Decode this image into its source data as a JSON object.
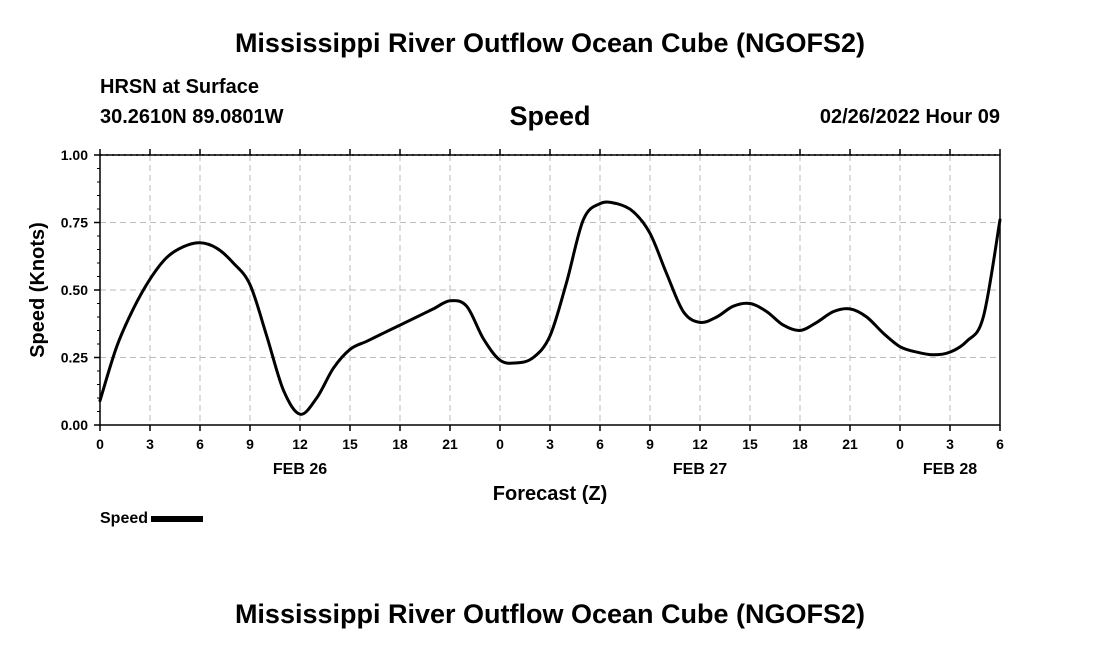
{
  "header": {
    "title": "Mississippi River Outflow Ocean Cube (NGOFS2)",
    "station": "HRSN at Surface",
    "coords": "30.2610N  89.0801W",
    "chart_title": "Speed",
    "timestamp": "02/26/2022 Hour 09"
  },
  "footer": {
    "title": "Mississippi River Outflow Ocean Cube (NGOFS2)"
  },
  "legend": {
    "label": "Speed"
  },
  "chart_data": {
    "type": "line",
    "title": "Speed",
    "xlabel": "Forecast (Z)",
    "ylabel": "Speed (Knots)",
    "ylim": [
      0,
      1
    ],
    "xlim": [
      0,
      54
    ],
    "grid": true,
    "legend_position": "bottom-left",
    "yticks": [
      "0.00",
      "0.25",
      "0.50",
      "0.75",
      "1.00"
    ],
    "xticks": [
      "0",
      "3",
      "6",
      "9",
      "12",
      "15",
      "18",
      "21",
      "0",
      "3",
      "6",
      "9",
      "12",
      "15",
      "18",
      "21",
      "0",
      "3",
      "6"
    ],
    "date_labels": [
      {
        "label": "FEB 26",
        "at": 12
      },
      {
        "label": "FEB 27",
        "at": 36
      },
      {
        "label": "FEB 28",
        "at": 51
      }
    ],
    "series": [
      {
        "name": "Speed",
        "color": "#000000",
        "x": [
          0,
          1,
          2,
          3,
          4,
          5,
          6,
          7,
          8,
          9,
          10,
          11,
          12,
          13,
          14,
          15,
          16,
          17,
          18,
          19,
          20,
          21,
          22,
          23,
          24,
          25,
          26,
          27,
          28,
          29,
          30,
          31,
          32,
          33,
          34,
          35,
          36,
          37,
          38,
          39,
          40,
          41,
          42,
          43,
          44,
          45,
          46,
          47,
          48,
          49,
          50,
          51,
          52,
          53,
          54
        ],
        "values": [
          0.09,
          0.29,
          0.43,
          0.54,
          0.62,
          0.66,
          0.675,
          0.655,
          0.6,
          0.52,
          0.33,
          0.13,
          0.04,
          0.1,
          0.21,
          0.28,
          0.31,
          0.34,
          0.37,
          0.4,
          0.43,
          0.46,
          0.44,
          0.32,
          0.24,
          0.23,
          0.25,
          0.33,
          0.53,
          0.76,
          0.82,
          0.82,
          0.79,
          0.71,
          0.56,
          0.42,
          0.38,
          0.4,
          0.44,
          0.45,
          0.42,
          0.37,
          0.35,
          0.38,
          0.42,
          0.43,
          0.4,
          0.34,
          0.29,
          0.27,
          0.26,
          0.27,
          0.31,
          0.4,
          0.76
        ]
      }
    ]
  }
}
